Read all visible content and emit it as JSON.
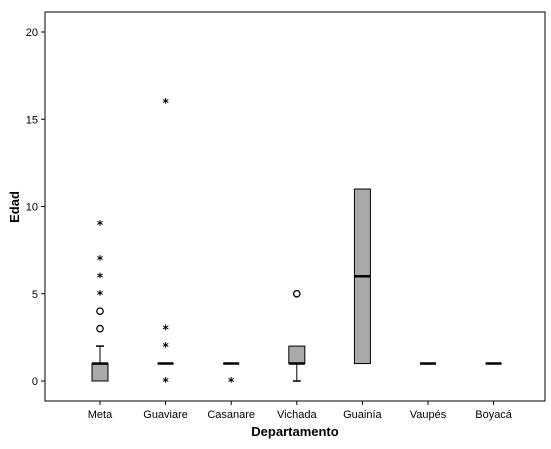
{
  "chart_data": {
    "type": "boxplot",
    "title": "",
    "xlabel": "Departamento",
    "ylabel": "Edad",
    "ylim": [
      -1.2,
      21
    ],
    "yticks": [
      "0",
      "5",
      "10",
      "15",
      "20"
    ],
    "categories": [
      "Meta",
      "Guaviare",
      "Casanare",
      "Vichada",
      "Guainía",
      "Vaupés",
      "Boyacá"
    ],
    "box_color": "#a9a9a9",
    "grid": false,
    "legend": "none",
    "boxes": [
      {
        "category": "Meta",
        "min": 0,
        "q1": 0,
        "median": 1,
        "q3": 1,
        "max": 2,
        "outliers_circle": [
          3,
          4
        ],
        "outliers_star": [
          5,
          6,
          7,
          9
        ]
      },
      {
        "category": "Guaviare",
        "min": 1,
        "q1": 1,
        "median": 1,
        "q3": 1,
        "max": 1,
        "outliers_circle": [],
        "outliers_star": [
          0,
          2,
          3,
          16
        ]
      },
      {
        "category": "Casanare",
        "min": 1,
        "q1": 1,
        "median": 1,
        "q3": 1,
        "max": 1,
        "outliers_circle": [],
        "outliers_star": [
          0
        ]
      },
      {
        "category": "Vichada",
        "min": 0,
        "q1": 1,
        "median": 1,
        "q3": 2,
        "max": 2,
        "outliers_circle": [
          5
        ],
        "outliers_star": []
      },
      {
        "category": "Guainía",
        "min": 1,
        "q1": 1,
        "median": 6,
        "q3": 11,
        "max": 11,
        "outliers_circle": [],
        "outliers_star": []
      },
      {
        "category": "Vaupés",
        "min": 1,
        "q1": 1,
        "median": 1,
        "q3": 1,
        "max": 1,
        "outliers_circle": [],
        "outliers_star": []
      },
      {
        "category": "Boyacá",
        "min": 1,
        "q1": 1,
        "median": 1,
        "q3": 1,
        "max": 1,
        "outliers_circle": [],
        "outliers_star": []
      }
    ]
  }
}
